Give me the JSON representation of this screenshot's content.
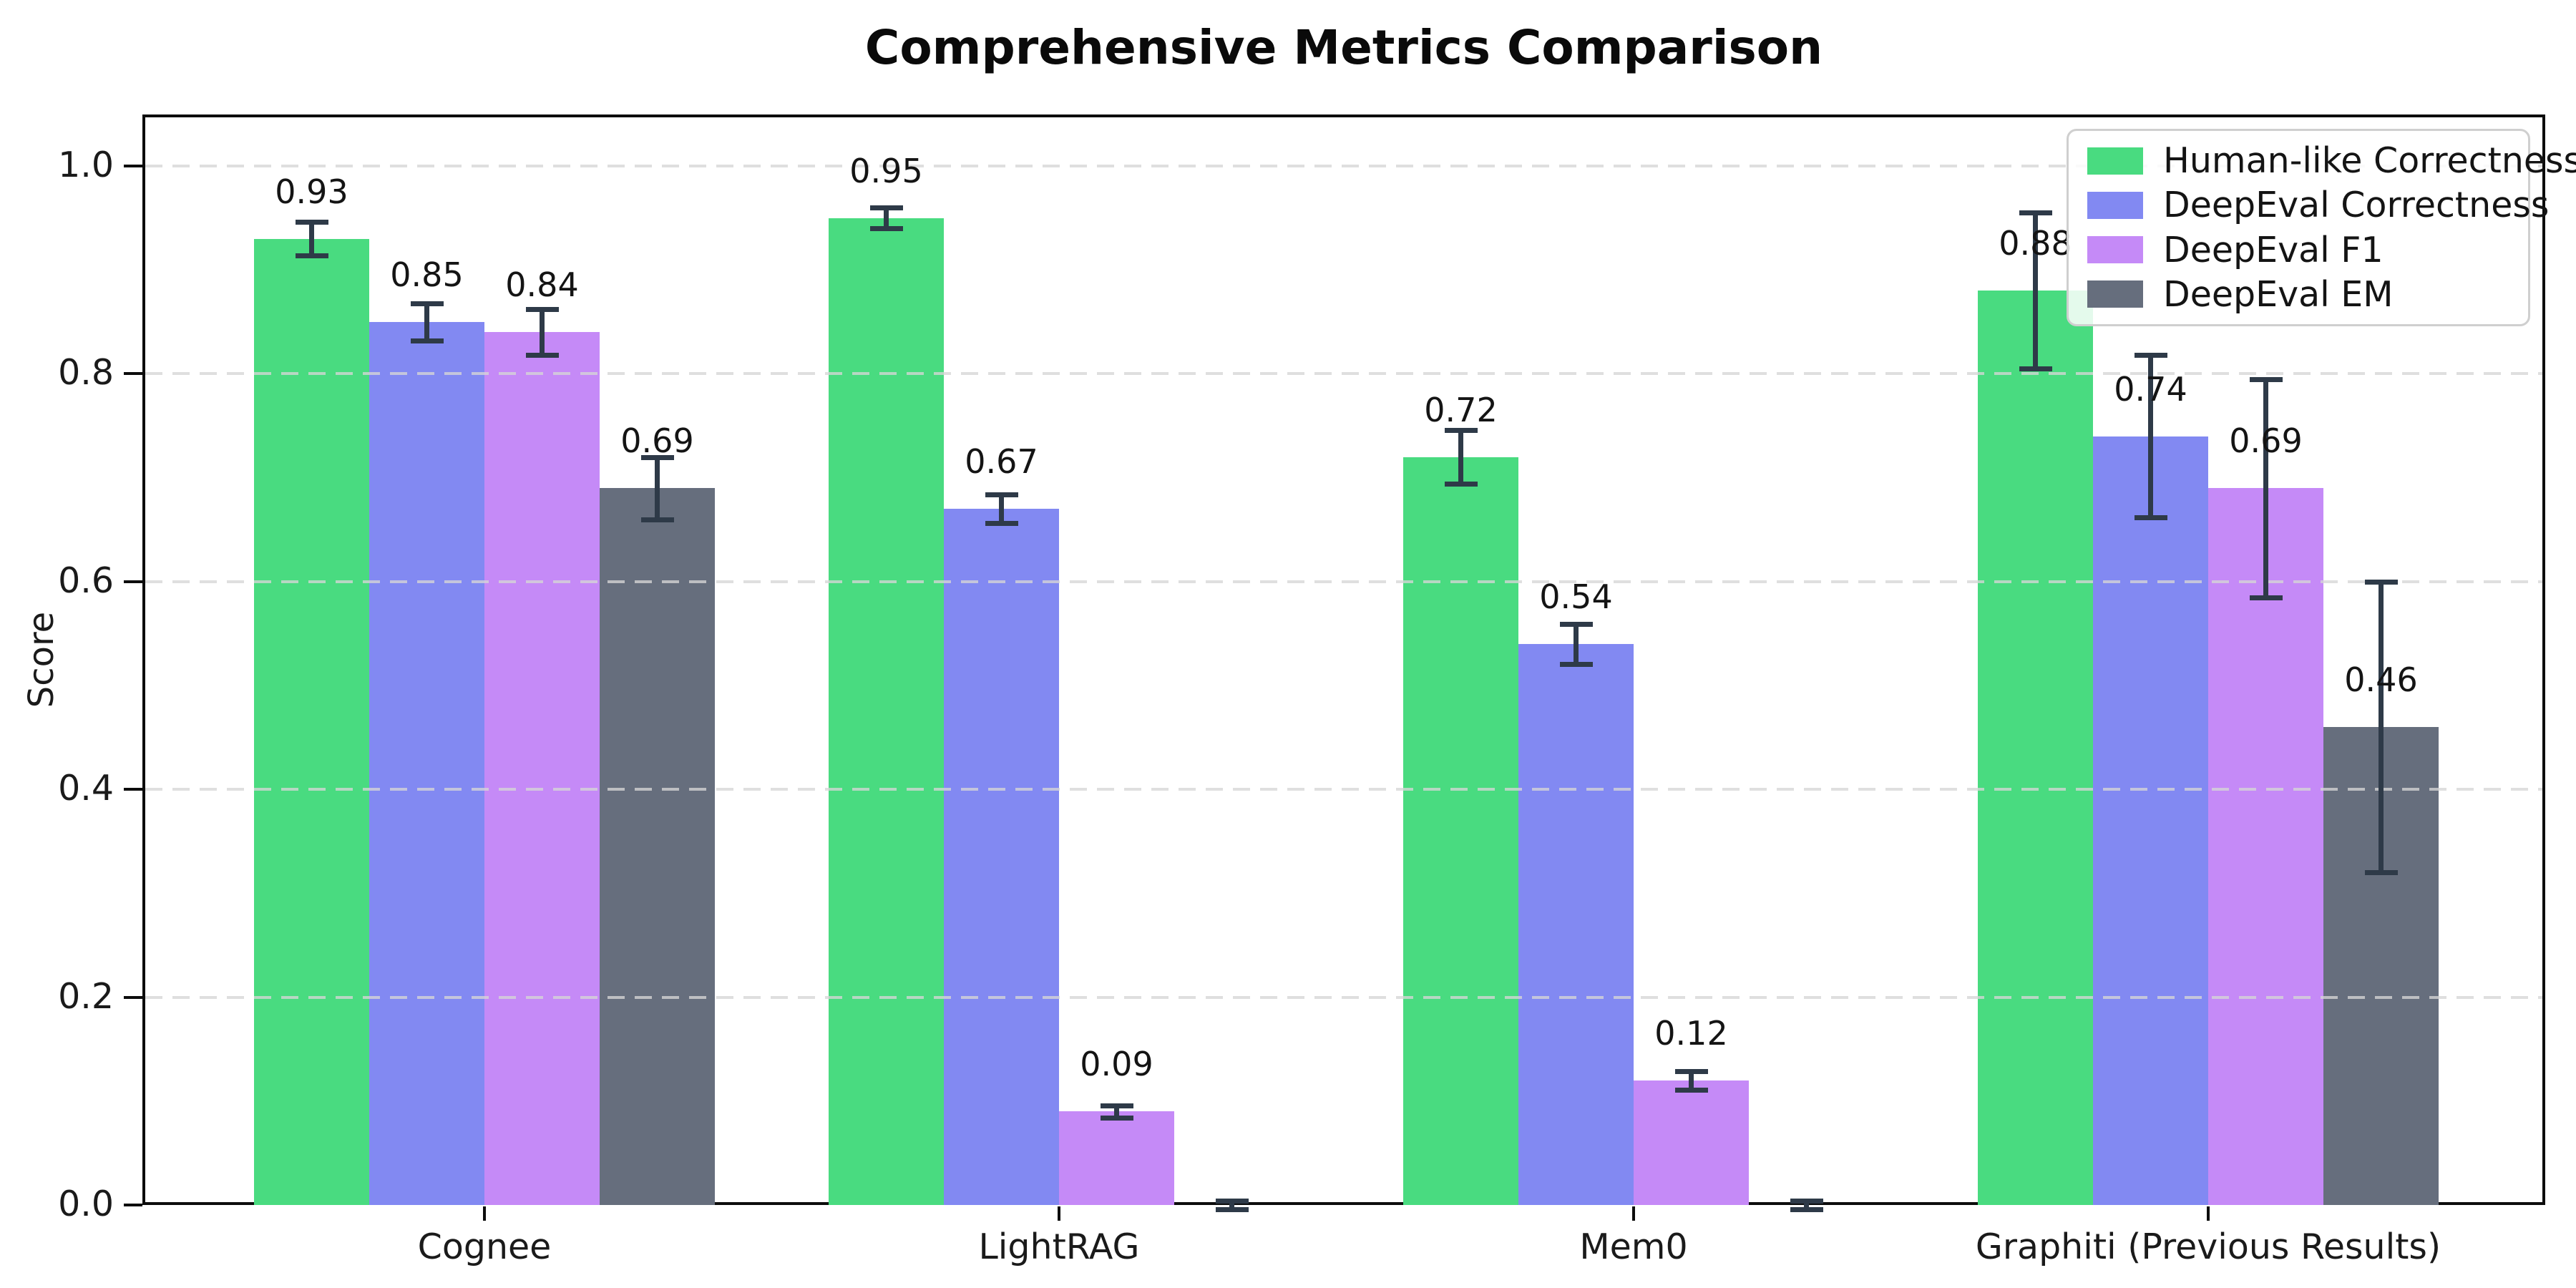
{
  "chart_data": {
    "type": "bar",
    "title": "Comprehensive Metrics Comparison",
    "ylabel": "Score",
    "xlabel": "",
    "categories": [
      "Cognee",
      "LightRAG",
      "Mem0",
      "Graphiti (Previous Results)"
    ],
    "series": [
      {
        "name": "Human-like Correctness",
        "color": "#49db80",
        "values": [
          0.93,
          0.95,
          0.72,
          0.88
        ],
        "errors": [
          0.016,
          0.01,
          0.026,
          0.075
        ]
      },
      {
        "name": "DeepEval Correctness",
        "color": "#8289f2",
        "values": [
          0.85,
          0.67,
          0.54,
          0.74
        ],
        "errors": [
          0.018,
          0.014,
          0.019,
          0.078
        ]
      },
      {
        "name": "DeepEval F1",
        "color": "#c58af7",
        "values": [
          0.84,
          0.09,
          0.12,
          0.69
        ],
        "errors": [
          0.022,
          0.006,
          0.009,
          0.105
        ]
      },
      {
        "name": "DeepEval EM",
        "color": "#666e7d",
        "values": [
          0.69,
          0.0,
          0.0,
          0.46
        ],
        "errors": [
          0.03,
          0.004,
          0.004,
          0.14
        ]
      }
    ],
    "bar_value_label_format": "0.00",
    "ylim": [
      0,
      1.05
    ],
    "yticks": [
      0.0,
      0.2,
      0.4,
      0.6,
      0.8,
      1.0
    ],
    "ytick_labels": [
      "0.0",
      "0.2",
      "0.4",
      "0.6",
      "0.8",
      "1.0"
    ],
    "grid": "horizontal-dashed",
    "legend_position": "upper right",
    "error_bar_color": "#2e3a48"
  }
}
